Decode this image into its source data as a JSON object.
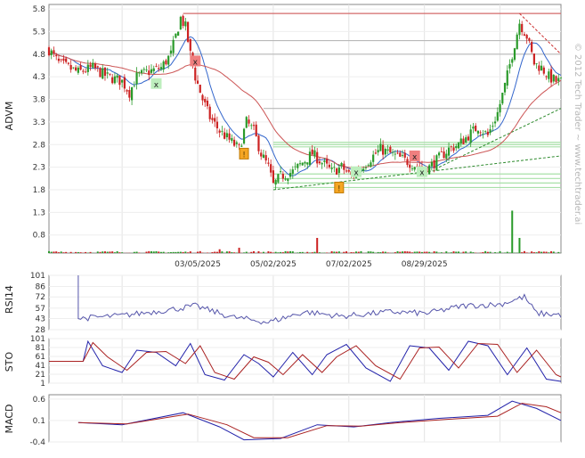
{
  "watermark": "© 2012 Tech Trader ~ www.techtrader.ai",
  "panels": {
    "price": {
      "label": "ADVM"
    },
    "rsi": {
      "label": "RSI14"
    },
    "sto": {
      "label": "STO"
    },
    "macd": {
      "label": "MACD"
    }
  },
  "chart_data": [
    {
      "type": "candlestick",
      "panel": "price",
      "ylabel": "ADVM",
      "ylim": [
        0.4,
        5.9
      ],
      "y_ticks": [
        "5.8",
        "5.3",
        "4.8",
        "4.3",
        "3.8",
        "3.3",
        "2.8",
        "2.3",
        "1.8",
        "1.3",
        "0.8"
      ],
      "x_ticks": [
        "03/05/2025",
        "05/02/2025",
        "07/02/2025",
        "08/29/2025"
      ],
      "close_path": [
        [
          0,
          4.9
        ],
        [
          4,
          4.6
        ],
        [
          8,
          4.5
        ],
        [
          12,
          4.4
        ],
        [
          18,
          4.5
        ],
        [
          24,
          4.3
        ],
        [
          30,
          4.2
        ],
        [
          33,
          3.95
        ],
        [
          36,
          4.3
        ],
        [
          40,
          4.4
        ],
        [
          46,
          4.5
        ],
        [
          50,
          4.8
        ],
        [
          52,
          5.2
        ],
        [
          54,
          5.6
        ],
        [
          56,
          5.4
        ],
        [
          58,
          4.8
        ],
        [
          60,
          4.3
        ],
        [
          63,
          3.8
        ],
        [
          66,
          3.4
        ],
        [
          70,
          3.1
        ],
        [
          74,
          2.9
        ],
        [
          78,
          2.7
        ],
        [
          81,
          3.3
        ],
        [
          84,
          3.1
        ],
        [
          87,
          2.6
        ],
        [
          90,
          2.3
        ],
        [
          92,
          1.9
        ],
        [
          95,
          2.1
        ],
        [
          100,
          2.2
        ],
        [
          104,
          2.4
        ],
        [
          108,
          2.6
        ],
        [
          112,
          2.4
        ],
        [
          116,
          2.2
        ],
        [
          120,
          2.3
        ],
        [
          124,
          2.1
        ],
        [
          128,
          2.3
        ],
        [
          132,
          2.5
        ],
        [
          136,
          2.7
        ],
        [
          140,
          2.6
        ],
        [
          144,
          2.5
        ],
        [
          148,
          2.4
        ],
        [
          152,
          2.3
        ],
        [
          156,
          2.3
        ],
        [
          160,
          2.5
        ],
        [
          164,
          2.7
        ],
        [
          168,
          2.8
        ],
        [
          172,
          3.0
        ],
        [
          176,
          3.2
        ],
        [
          180,
          3.0
        ],
        [
          184,
          3.5
        ],
        [
          187,
          4.1
        ],
        [
          190,
          4.8
        ],
        [
          193,
          5.5
        ],
        [
          196,
          5.2
        ],
        [
          199,
          4.6
        ],
        [
          202,
          4.5
        ],
        [
          205,
          4.3
        ],
        [
          208,
          4.2
        ]
      ],
      "volume_spikes": [
        [
          70,
          0.25
        ],
        [
          78,
          0.35
        ],
        [
          110,
          1.0
        ],
        [
          190,
          2.8
        ],
        [
          193,
          1.0
        ]
      ],
      "signals": [
        {
          "type": "sell",
          "x": 60,
          "value": 4.65
        },
        {
          "type": "buy",
          "x": 44,
          "value": 4.15
        },
        {
          "type": "warn",
          "x": 80,
          "value": 2.6
        },
        {
          "type": "warn",
          "x": 119,
          "value": 1.85
        },
        {
          "type": "buy",
          "x": 126,
          "value": 2.2
        },
        {
          "type": "sell",
          "x": 150,
          "value": 2.55
        },
        {
          "type": "buy",
          "x": 153,
          "value": 2.2
        }
      ],
      "resistance_levels": [
        5.7,
        5.1,
        4.8,
        3.6
      ],
      "support_levels": [
        2.85,
        2.8,
        2.75,
        2.15,
        2.05,
        1.95,
        1.85
      ]
    },
    {
      "type": "line",
      "panel": "rsi",
      "ylabel": "RSI14",
      "ylim": [
        28,
        101
      ],
      "y_ticks": [
        "101",
        "86",
        "72",
        "57",
        "43",
        "28"
      ],
      "series": [
        {
          "color": "#5555aa",
          "values": [
            [
              12,
              43
            ],
            [
              30,
              47
            ],
            [
              50,
              55
            ],
            [
              60,
              60
            ],
            [
              75,
              45
            ],
            [
              90,
              38
            ],
            [
              105,
              52
            ],
            [
              120,
              46
            ],
            [
              140,
              52
            ],
            [
              155,
              50
            ],
            [
              170,
              60
            ],
            [
              185,
              62
            ],
            [
              195,
              72
            ],
            [
              200,
              50
            ],
            [
              210,
              48
            ]
          ]
        }
      ]
    },
    {
      "type": "line",
      "panel": "sto",
      "ylabel": "STO",
      "ylim": [
        1,
        101
      ],
      "y_ticks": [
        "101",
        "81",
        "61",
        "41",
        "21",
        "1"
      ],
      "series": [
        {
          "color": "#2222aa",
          "name": "",
          "values": [
            [
              0,
              50
            ],
            [
              14,
              50
            ],
            [
              16,
              95
            ],
            [
              22,
              40
            ],
            [
              30,
              25
            ],
            [
              36,
              75
            ],
            [
              44,
              70
            ],
            [
              52,
              40
            ],
            [
              58,
              90
            ],
            [
              64,
              20
            ],
            [
              72,
              8
            ],
            [
              80,
              65
            ],
            [
              86,
              45
            ],
            [
              92,
              15
            ],
            [
              100,
              70
            ],
            [
              108,
              20
            ],
            [
              114,
              65
            ],
            [
              122,
              88
            ],
            [
              130,
              35
            ],
            [
              140,
              5
            ],
            [
              148,
              85
            ],
            [
              156,
              80
            ],
            [
              164,
              30
            ],
            [
              172,
              95
            ],
            [
              180,
              85
            ],
            [
              188,
              20
            ],
            [
              196,
              80
            ],
            [
              204,
              10
            ],
            [
              210,
              5
            ]
          ]
        },
        {
          "color": "#aa2222",
          "name": "",
          "values": [
            [
              0,
              50
            ],
            [
              14,
              50
            ],
            [
              18,
              92
            ],
            [
              24,
              60
            ],
            [
              32,
              30
            ],
            [
              40,
              70
            ],
            [
              48,
              72
            ],
            [
              56,
              45
            ],
            [
              62,
              85
            ],
            [
              68,
              25
            ],
            [
              76,
              10
            ],
            [
              84,
              60
            ],
            [
              90,
              48
            ],
            [
              96,
              20
            ],
            [
              104,
              65
            ],
            [
              112,
              25
            ],
            [
              118,
              60
            ],
            [
              126,
              85
            ],
            [
              134,
              40
            ],
            [
              144,
              10
            ],
            [
              152,
              80
            ],
            [
              160,
              82
            ],
            [
              168,
              35
            ],
            [
              176,
              90
            ],
            [
              184,
              88
            ],
            [
              192,
              25
            ],
            [
              200,
              75
            ],
            [
              208,
              20
            ],
            [
              210,
              15
            ]
          ]
        }
      ]
    },
    {
      "type": "line",
      "panel": "macd",
      "ylabel": "MACD",
      "ylim": [
        -0.4,
        0.7
      ],
      "y_ticks": [
        "0.6",
        "0.1",
        "-0.4"
      ],
      "series": [
        {
          "color": "#2222aa",
          "name": "",
          "values": [
            [
              12,
              0.05
            ],
            [
              30,
              0.0
            ],
            [
              55,
              0.28
            ],
            [
              70,
              -0.05
            ],
            [
              80,
              -0.35
            ],
            [
              95,
              -0.32
            ],
            [
              110,
              0.0
            ],
            [
              125,
              -0.05
            ],
            [
              140,
              0.05
            ],
            [
              160,
              0.15
            ],
            [
              180,
              0.22
            ],
            [
              190,
              0.55
            ],
            [
              200,
              0.38
            ],
            [
              210,
              0.1
            ]
          ]
        },
        {
          "color": "#aa2222",
          "name": "",
          "values": [
            [
              12,
              0.05
            ],
            [
              32,
              0.02
            ],
            [
              57,
              0.25
            ],
            [
              73,
              0.0
            ],
            [
              84,
              -0.3
            ],
            [
              98,
              -0.3
            ],
            [
              114,
              -0.02
            ],
            [
              128,
              -0.03
            ],
            [
              144,
              0.05
            ],
            [
              164,
              0.13
            ],
            [
              184,
              0.2
            ],
            [
              194,
              0.5
            ],
            [
              204,
              0.42
            ],
            [
              210,
              0.28
            ]
          ]
        }
      ]
    }
  ]
}
